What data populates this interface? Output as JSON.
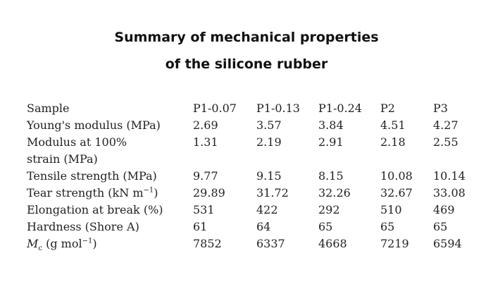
{
  "title_lines": [
    "Summary of mechanical properties",
    "of the silicone rubber"
  ],
  "table": {
    "header": [
      "Sample",
      "P1-0.07",
      "P1-0.13",
      "P1-0.24",
      "P2",
      "P3"
    ],
    "rows": [
      {
        "label": [
          {
            "text": "Young's modulus (MPa)"
          }
        ],
        "values": [
          2.69,
          3.57,
          3.84,
          4.51,
          4.27
        ]
      },
      {
        "label": [
          {
            "text": "Modulus at 100%"
          },
          {
            "text": "strain (MPa)",
            "newline": true
          }
        ],
        "values": [
          1.31,
          2.19,
          2.91,
          2.18,
          2.55
        ]
      },
      {
        "label": [
          {
            "text": "Tensile strength (MPa)"
          }
        ],
        "values": [
          9.77,
          9.15,
          8.15,
          10.08,
          10.14
        ]
      },
      {
        "label": [
          {
            "text": "Tear strength (kN m"
          },
          {
            "sup": "−1"
          },
          {
            "text": ")"
          }
        ],
        "values": [
          29.89,
          31.72,
          32.26,
          32.67,
          33.08
        ]
      },
      {
        "label": [
          {
            "text": "Elongation at break (%)"
          }
        ],
        "values": [
          531,
          422,
          292,
          510,
          469
        ]
      },
      {
        "label": [
          {
            "text": "Hardness (Shore A)"
          }
        ],
        "values": [
          61,
          64,
          65,
          65,
          65
        ]
      },
      {
        "label": [
          {
            "italic": "M"
          },
          {
            "sub": "c"
          },
          {
            "text": " (g mol"
          },
          {
            "sup": "−1"
          },
          {
            "text": ")"
          }
        ],
        "values": [
          7852,
          6337,
          4668,
          7219,
          6594
        ]
      }
    ]
  }
}
